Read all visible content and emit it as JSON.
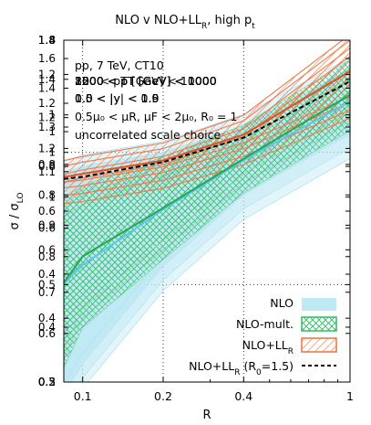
{
  "chart_data": {
    "type": "area",
    "title": "NLO v NLO+LL",
    "title_sub": "R",
    "title_suffix": ", high p",
    "title_suffix_sub": "t",
    "xlabel": "R",
    "ylabel": "σ / σ",
    "ylabel_sub": "LO",
    "xscale": "log",
    "yscale": "log",
    "xlim": [
      0.085,
      1.0
    ],
    "ylim": [
      0.3,
      1.8
    ],
    "x_ticks": [
      0.1,
      0.2,
      0.4,
      1
    ],
    "x_tick_labels": [
      "0.1",
      "0.2",
      "0.4",
      "1"
    ],
    "y_tick_columns": [
      [
        "1.8",
        "1.3",
        "1.2",
        "1.1",
        "1",
        "0.9",
        "0.8",
        "0.7",
        "0.6",
        "0.5"
      ],
      [
        "1.4",
        "1.2",
        "1",
        "0.8",
        "0.6",
        "0.4",
        "0.3"
      ],
      [
        "1.8",
        "1.4",
        "1.2",
        "1",
        "0.8",
        "0.6",
        "0.5",
        "0.4",
        "0.3"
      ],
      [
        "1.8",
        "1.6",
        "1.4",
        "1.2",
        "1",
        "0.8",
        "0.6",
        "0.4",
        "0.2"
      ]
    ],
    "annotations": [
      "pp, 7 TeV, CT10",
      "",
      "",
      "0.5μ",
      "uncorrelated scale choice"
    ],
    "annotation_overlaps": {
      "ptbins": [
        "800 < p",
        "1000 < p",
        "1200 < p",
        "1500 < p",
        "2000 < p"
      ],
      "ptbin_suffix": " [GeV] < 1000",
      "ybins": [
        "0.0 < |y| < 0.5",
        "0.5 < |y| < 1.0",
        "1.0 < |y| < 1.9"
      ]
    },
    "scale_line": "0.5μ₀ < μR, μF < 2μ₀, R₀ = 1",
    "legend_position": "bottom-right",
    "legend": [
      {
        "label": "NLO",
        "style": "fill",
        "color": "#bfe9f5"
      },
      {
        "label": "NLO-mult.",
        "style": "crosshatch",
        "color": "#3fbf6f"
      },
      {
        "label": "NLO+LL",
        "label_sub": "R",
        "style": "hatch",
        "color": "#f07a4a"
      },
      {
        "label": "NLO+LL",
        "label_sub": "R",
        "label_suffix": " (R",
        "label_suffix_sub": "0",
        "label_tail": "=1.5)",
        "style": "dashed",
        "color": "#000000"
      }
    ],
    "series": [
      {
        "name": "NLO",
        "x": [
          0.085,
          0.1,
          0.2,
          0.4,
          1.0
        ],
        "lower": [
          0.28,
          0.33,
          0.55,
          0.8,
          1.1
        ],
        "upper": [
          0.9,
          0.93,
          1.0,
          1.15,
          1.55
        ],
        "color": "#bfe9f5"
      },
      {
        "name": "NLO-mult.",
        "x": [
          0.085,
          0.1,
          0.2,
          0.4,
          1.0
        ],
        "lower": [
          0.34,
          0.42,
          0.6,
          0.85,
          1.18
        ],
        "upper": [
          0.75,
          0.8,
          0.93,
          1.1,
          1.55
        ],
        "color": "#3fbf6f"
      },
      {
        "name": "NLO+LL_R",
        "x": [
          0.085,
          0.1,
          0.2,
          0.4,
          1.0
        ],
        "lower": [
          0.83,
          0.84,
          0.9,
          1.02,
          1.3
        ],
        "upper": [
          0.93,
          0.95,
          1.02,
          1.18,
          1.8
        ],
        "color": "#f07a4a"
      },
      {
        "name": "NLO+LL_R (R0=1.5)",
        "x": [
          0.085,
          0.1,
          0.2,
          0.4,
          1.0
        ],
        "y": [
          0.87,
          0.88,
          0.95,
          1.08,
          1.45
        ],
        "color": "#000000"
      }
    ]
  }
}
